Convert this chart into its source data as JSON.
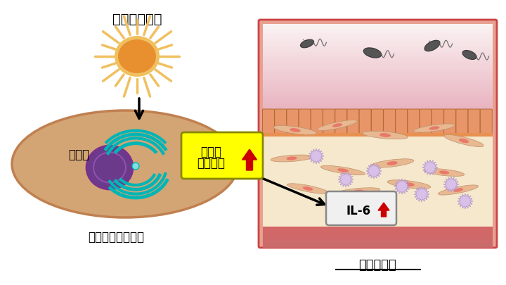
{
  "bg_color": "#ffffff",
  "heat_stress_label": "暑熱ストレス",
  "cell_label": "小胞体",
  "cell_body_label": "子宮内膜間質細胞",
  "er_stress_label_line1": "小胞体",
  "er_stress_label_line2": "ストレス",
  "il6_label": "IL-6",
  "hot_env_label": "暑熱環境下",
  "cell_color": "#d4a574",
  "cell_outline": "#c08050",
  "nucleus_color": "#6b3a8a",
  "er_color": "#00b5b5",
  "sun_core_color": "#e8a030",
  "sun_ray_color": "#f0c060",
  "epithelial_color": "#e8956a",
  "bacteria_color": "#555555",
  "yellow_box_color": "#ffff00",
  "arrow_color": "#cc0000"
}
